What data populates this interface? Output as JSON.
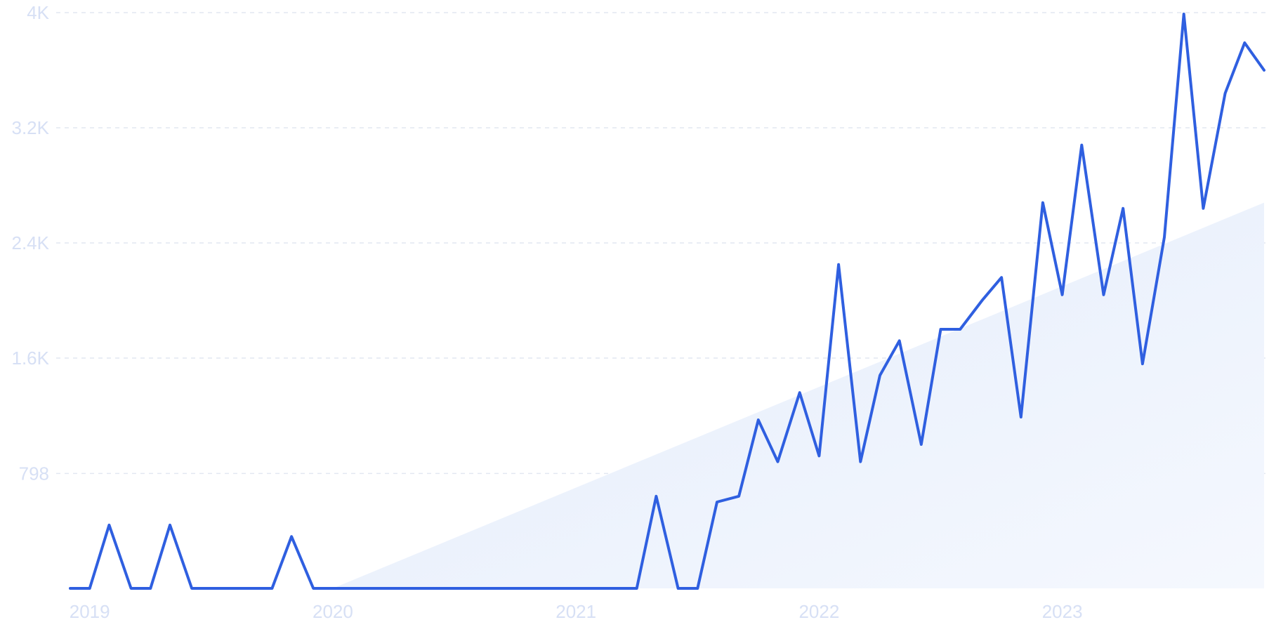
{
  "chart_data": {
    "type": "line",
    "yticks": [
      {
        "v": 0,
        "label": ""
      },
      {
        "v": 798,
        "label": "798"
      },
      {
        "v": 1600,
        "label": "1.6K"
      },
      {
        "v": 2400,
        "label": "2.4K"
      },
      {
        "v": 3200,
        "label": "3.2K"
      },
      {
        "v": 4000,
        "label": "4K"
      }
    ],
    "xticks": [
      {
        "v": 2019.0,
        "label": "2019"
      },
      {
        "v": 2020.0,
        "label": "2020"
      },
      {
        "v": 2021.0,
        "label": "2021"
      },
      {
        "v": 2022.0,
        "label": "2022"
      },
      {
        "v": 2023.0,
        "label": "2023"
      }
    ],
    "xlim": [
      2018.92,
      2023.83
    ],
    "ylim": [
      0,
      4000
    ],
    "grid": true,
    "series": [
      {
        "color": "#2f5fe0",
        "points": [
          [
            2018.92,
            0
          ],
          [
            2019.0,
            0
          ],
          [
            2019.08,
            440
          ],
          [
            2019.17,
            0
          ],
          [
            2019.25,
            0
          ],
          [
            2019.33,
            440
          ],
          [
            2019.42,
            0
          ],
          [
            2019.5,
            0
          ],
          [
            2019.58,
            0
          ],
          [
            2019.67,
            0
          ],
          [
            2019.75,
            0
          ],
          [
            2019.83,
            360
          ],
          [
            2019.92,
            0
          ],
          [
            2020.0,
            0
          ],
          [
            2020.08,
            0
          ],
          [
            2020.17,
            0
          ],
          [
            2020.25,
            0
          ],
          [
            2020.33,
            0
          ],
          [
            2020.42,
            0
          ],
          [
            2020.5,
            0
          ],
          [
            2020.58,
            0
          ],
          [
            2020.67,
            0
          ],
          [
            2020.75,
            0
          ],
          [
            2020.83,
            0
          ],
          [
            2020.92,
            0
          ],
          [
            2021.0,
            0
          ],
          [
            2021.08,
            0
          ],
          [
            2021.17,
            0
          ],
          [
            2021.25,
            0
          ],
          [
            2021.33,
            640
          ],
          [
            2021.42,
            0
          ],
          [
            2021.5,
            0
          ],
          [
            2021.58,
            600
          ],
          [
            2021.67,
            640
          ],
          [
            2021.75,
            1170
          ],
          [
            2021.83,
            880
          ],
          [
            2021.92,
            1360
          ],
          [
            2022.0,
            920
          ],
          [
            2022.08,
            2250
          ],
          [
            2022.17,
            880
          ],
          [
            2022.25,
            1480
          ],
          [
            2022.33,
            1720
          ],
          [
            2022.42,
            1000
          ],
          [
            2022.5,
            1800
          ],
          [
            2022.58,
            1800
          ],
          [
            2022.67,
            2000
          ],
          [
            2022.75,
            2160
          ],
          [
            2022.83,
            1190
          ],
          [
            2022.92,
            2680
          ],
          [
            2023.0,
            2040
          ],
          [
            2023.08,
            3080
          ],
          [
            2023.17,
            2040
          ],
          [
            2023.25,
            2640
          ],
          [
            2023.33,
            1560
          ],
          [
            2023.42,
            2440
          ],
          [
            2023.5,
            3990
          ],
          [
            2023.58,
            2640
          ],
          [
            2023.67,
            3440
          ],
          [
            2023.75,
            3790
          ],
          [
            2023.83,
            3600
          ]
        ]
      }
    ],
    "trend": {
      "from": [
        2020.0,
        0
      ],
      "to": [
        2023.83,
        2680
      ],
      "color": "#e6eefb"
    }
  }
}
